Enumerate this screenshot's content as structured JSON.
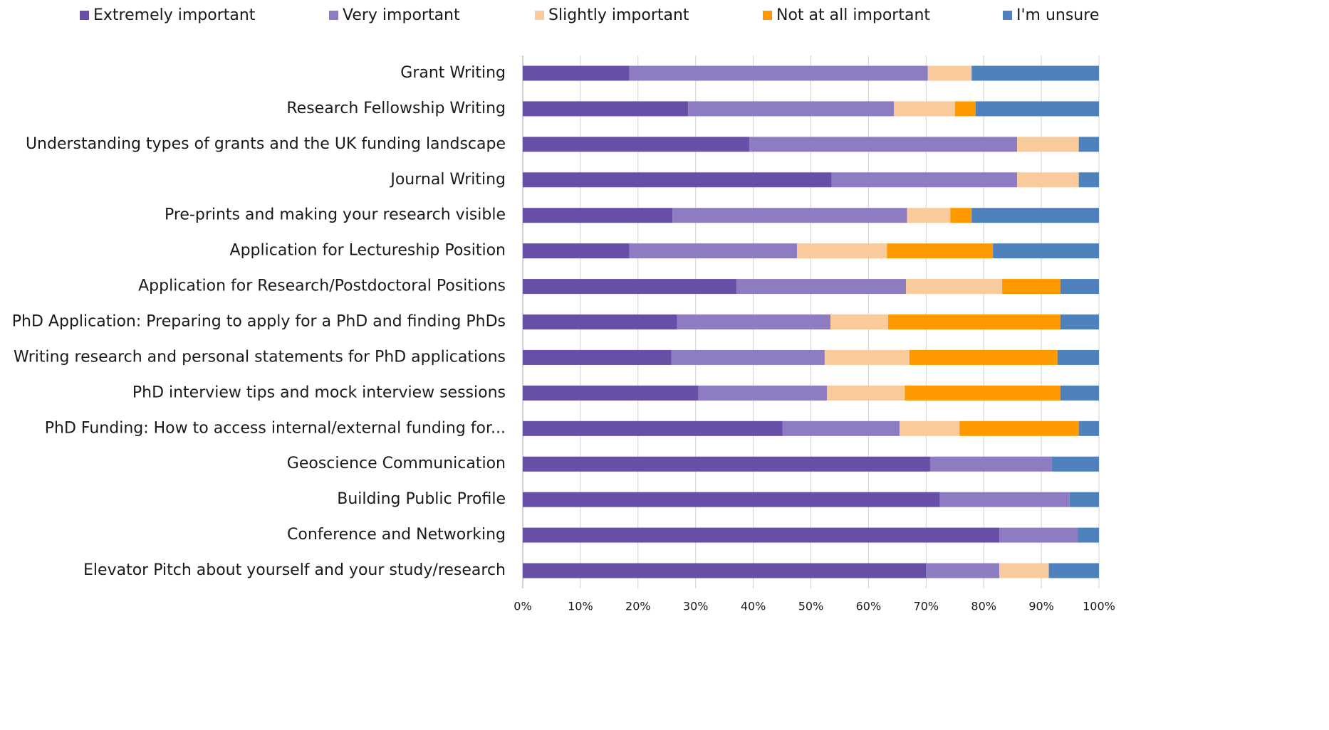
{
  "chart_data": {
    "type": "stacked-bar-horizontal",
    "categories": [
      "Grant Writing",
      "Research Fellowship Writing",
      "Understanding types of grants and the UK funding landscape",
      "Journal Writing",
      "Pre-prints and making your research visible",
      "Application for Lectureship Position",
      "Application for Research/Postdoctoral Positions",
      "PhD Application: Preparing to apply for a PhD and finding PhDs",
      "Writing research and personal statements for PhD applications",
      "PhD interview tips and mock interview sessions",
      "PhD Funding: How to access internal/external funding for...",
      "Geoscience Communication",
      "Building Public Profile",
      "Conference and Networking",
      "Elevator Pitch about yourself and your study/research"
    ],
    "series": [
      {
        "name": "Extremely important",
        "color": "#674ea7",
        "values": [
          18.5,
          28.7,
          39.3,
          53.6,
          26.0,
          18.5,
          37.1,
          26.8,
          25.8,
          30.5,
          45.1,
          70.7,
          72.4,
          82.7,
          70.0
        ]
      },
      {
        "name": "Very important",
        "color": "#8e7cc3",
        "values": [
          51.8,
          35.7,
          46.5,
          32.2,
          40.7,
          29.1,
          29.4,
          26.6,
          26.6,
          22.3,
          20.3,
          21.1,
          22.5,
          13.6,
          12.7
        ]
      },
      {
        "name": "Slightly important",
        "color": "#f9cb9c",
        "values": [
          7.6,
          10.6,
          10.7,
          10.7,
          7.5,
          15.6,
          16.7,
          10.0,
          14.7,
          13.5,
          10.4,
          0,
          0,
          0,
          8.6
        ]
      },
      {
        "name": "Not at all important",
        "color": "#ff9900",
        "values": [
          0,
          3.6,
          0,
          0,
          3.7,
          18.4,
          10.1,
          29.9,
          25.7,
          27.0,
          20.7,
          0,
          0,
          0,
          0
        ]
      },
      {
        "name": "I'm unsure",
        "color": "#4f81bd",
        "values": [
          22.1,
          21.4,
          3.5,
          3.5,
          22.1,
          18.4,
          6.7,
          6.7,
          7.2,
          6.7,
          3.5,
          8.2,
          5.1,
          3.7,
          8.7
        ]
      }
    ],
    "xlim": [
      0,
      100
    ],
    "xticks": [
      {
        "value": 0,
        "label": "0%"
      },
      {
        "value": 10,
        "label": "10%"
      },
      {
        "value": 20,
        "label": "20%"
      },
      {
        "value": 30,
        "label": "30%"
      },
      {
        "value": 40,
        "label": "40%"
      },
      {
        "value": 50,
        "label": "50%"
      },
      {
        "value": 60,
        "label": "60%"
      },
      {
        "value": 70,
        "label": "70%"
      },
      {
        "value": 80,
        "label": "80%"
      },
      {
        "value": 90,
        "label": "90%"
      },
      {
        "value": 100,
        "label": "100%"
      }
    ],
    "grid": true,
    "legend": "top"
  }
}
